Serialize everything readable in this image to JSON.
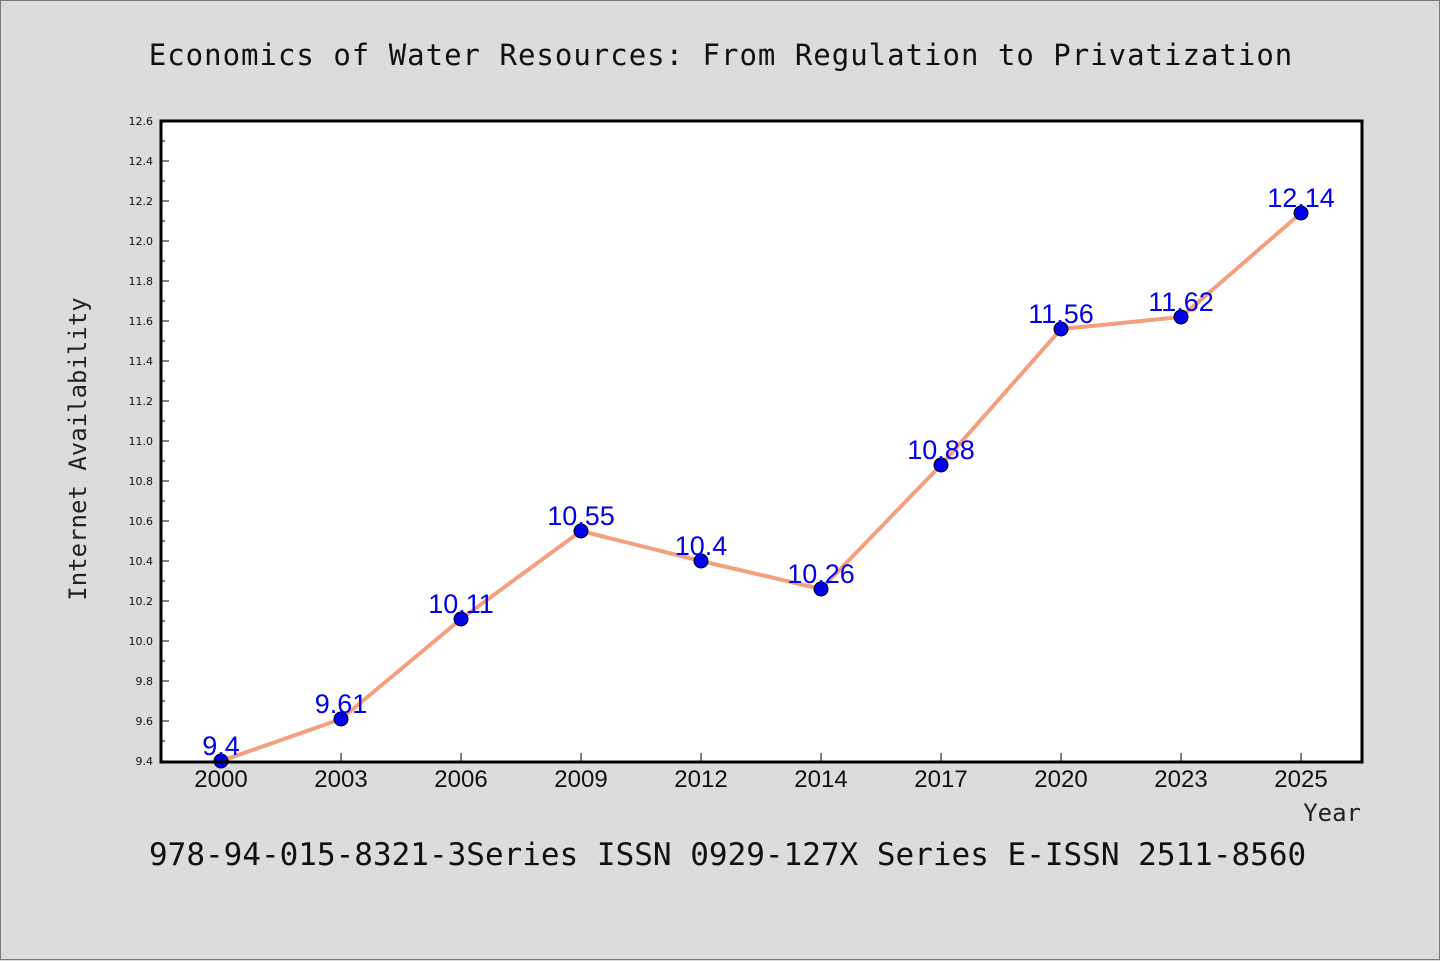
{
  "chart_data": {
    "type": "line",
    "title": "Economics of Water Resources: From Regulation to Privatization",
    "xlabel": "Year",
    "ylabel": "Internet Availability",
    "categories": [
      "2000",
      "2003",
      "2006",
      "2009",
      "2012",
      "2014",
      "2017",
      "2020",
      "2023",
      "2025"
    ],
    "series": [
      {
        "values": [
          9.4,
          9.61,
          10.11,
          10.55,
          10.4,
          10.26,
          10.88,
          11.56,
          11.62,
          12.14
        ],
        "labels": [
          "9.4",
          "9.61",
          "10.11",
          "10.55",
          "10.4",
          "10.26",
          "10.88",
          "11.56",
          "11.62",
          "12.14"
        ],
        "line_color": "#f4a07e",
        "marker_color": "#0000ee"
      }
    ],
    "ylim": [
      9.4,
      12.6
    ],
    "yticks": [
      "9.4",
      "9.6",
      "9.8",
      "10.0",
      "10.2",
      "10.4",
      "10.6",
      "10.8",
      "11.0",
      "11.2",
      "11.4",
      "11.6",
      "11.8",
      "12.0",
      "12.2",
      "12.4",
      "12.6"
    ],
    "grid": false,
    "legend": "none",
    "data_labels": true
  },
  "footer": {
    "text": "978-94-015-8321-3Series ISSN 0929-127X Series E-ISSN 2511-8560"
  }
}
